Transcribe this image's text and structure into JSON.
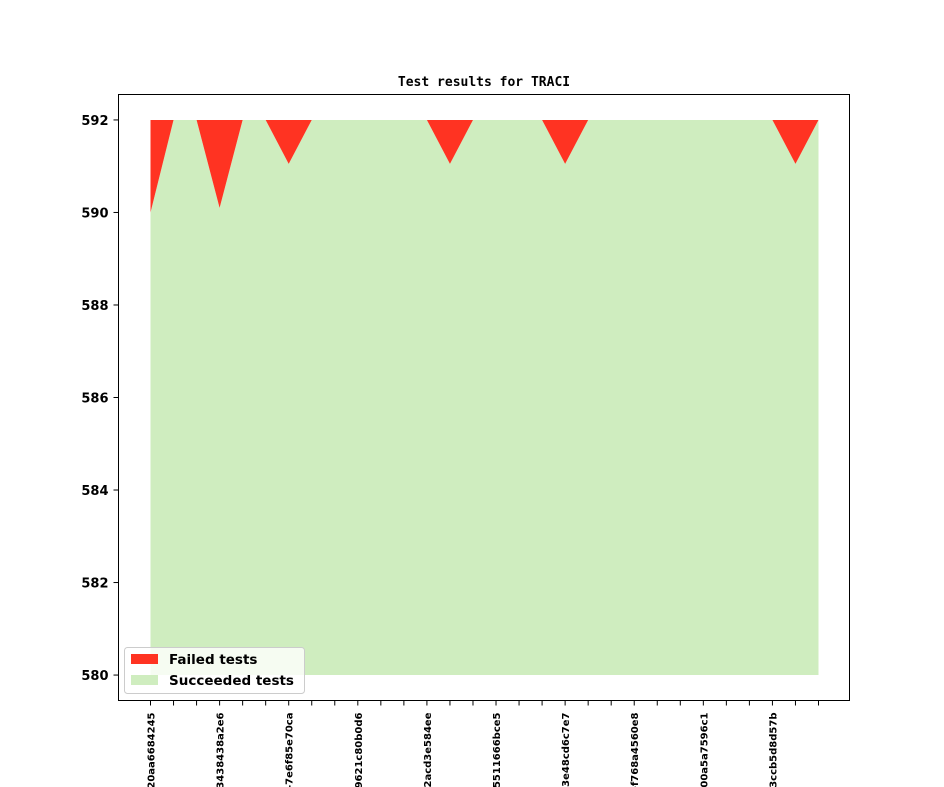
{
  "chart_data": {
    "type": "area",
    "title": "Test results for TRACI",
    "xlabel": "",
    "ylabel": "",
    "ylim": [
      579.45,
      592.55
    ],
    "yticks": [
      580,
      582,
      584,
      586,
      588,
      590,
      592
    ],
    "x_count": 30,
    "xtick_labels": [
      {
        "index": 0,
        "label": "20aa6684245"
      },
      {
        "index": 3,
        "label": "3438438a2e6"
      },
      {
        "index": 6,
        "label": "-7e6f85e70ca"
      },
      {
        "index": 9,
        "label": "9621c80b0d6"
      },
      {
        "index": 12,
        "label": "2acd3e584ee"
      },
      {
        "index": 15,
        "label": "5511666bce5"
      },
      {
        "index": 18,
        "label": "3e48cd6c7e7"
      },
      {
        "index": 21,
        "label": "-f768a4560e8"
      },
      {
        "index": 24,
        "label": "00a5a7596c1"
      },
      {
        "index": 27,
        "label": "3ccb5d8d57b"
      }
    ],
    "series": [
      {
        "name": "Succeeded tests",
        "color": "#cfedbf",
        "values": [
          590,
          592,
          592,
          590.1,
          592,
          592,
          591.05,
          592,
          592,
          592,
          592,
          592,
          592,
          591.05,
          592,
          592,
          592,
          592,
          591.05,
          592,
          592,
          592,
          592,
          592,
          592,
          592,
          592,
          592,
          591.05,
          592
        ]
      },
      {
        "name": "Failed tests",
        "color": "#ff3322",
        "values": [
          2,
          0,
          0,
          1.9,
          0,
          0,
          0.95,
          0,
          0,
          0,
          0,
          0,
          0,
          0.95,
          0,
          0,
          0,
          0,
          0.95,
          0,
          0,
          0,
          0,
          0,
          0,
          0,
          0,
          0,
          0.95,
          0
        ]
      }
    ],
    "total": 592,
    "baseline": 580,
    "grid": false,
    "legend_position": "lower-left"
  }
}
